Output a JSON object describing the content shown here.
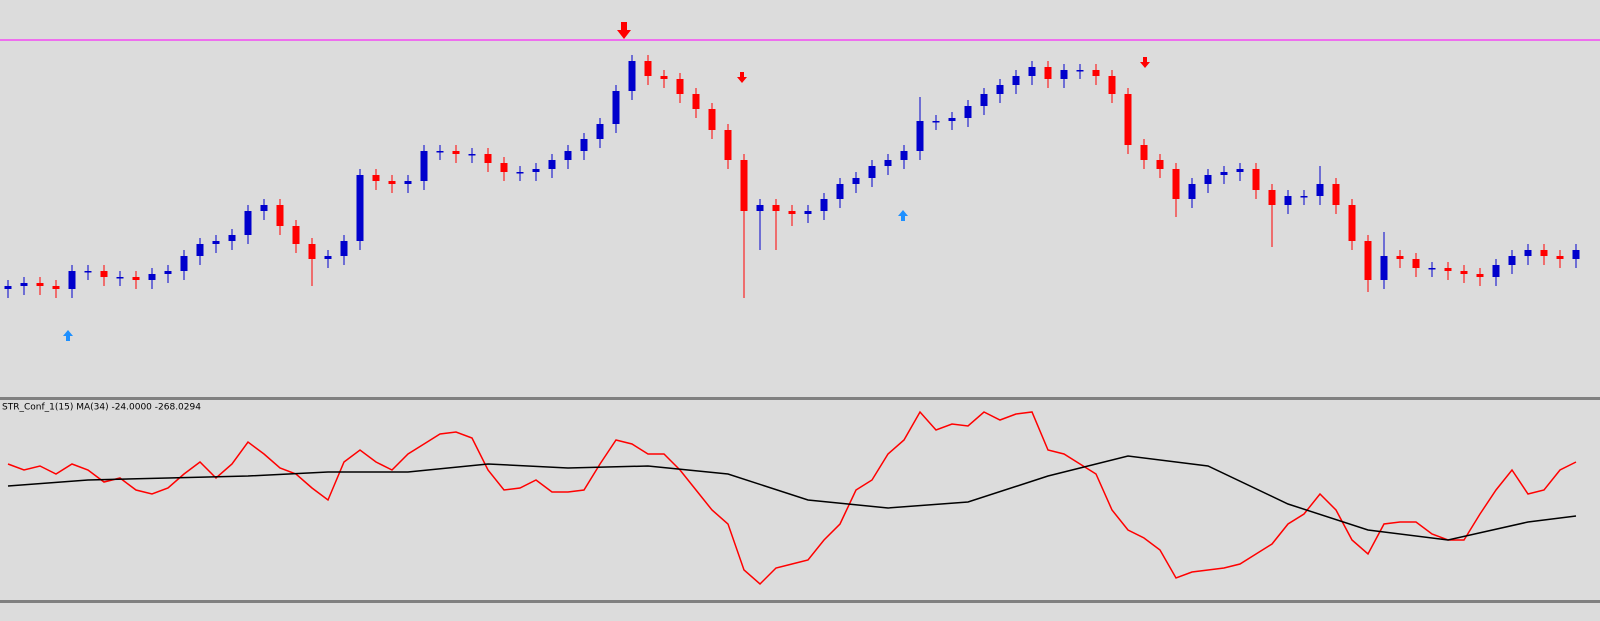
{
  "chart_data": [
    {
      "type": "candlestick",
      "open": [
        37,
        38,
        39,
        38,
        37,
        43,
        43,
        41,
        41,
        40,
        42,
        43,
        48,
        52,
        53,
        55,
        63,
        65,
        58,
        52,
        47,
        48,
        53,
        75,
        73,
        72,
        73,
        83,
        83,
        82,
        82,
        79,
        76,
        76,
        77,
        80,
        83,
        87,
        92,
        103,
        113,
        108,
        107,
        102,
        97,
        90,
        80,
        63,
        65,
        63,
        62,
        63,
        67,
        72,
        74,
        78,
        80,
        83,
        93,
        93,
        94,
        98,
        102,
        105,
        108,
        111,
        107,
        110,
        110,
        108,
        102,
        85,
        80,
        77,
        67,
        72,
        75,
        76,
        77,
        70,
        65,
        68,
        68,
        72,
        65,
        53,
        40,
        48,
        47,
        44,
        44,
        43,
        42,
        41,
        45,
        48,
        50,
        48,
        47
      ],
      "high": [
        40,
        41,
        41,
        40,
        45,
        45,
        45,
        43,
        43,
        44,
        45,
        50,
        54,
        55,
        57,
        65,
        67,
        67,
        60,
        54,
        50,
        55,
        77,
        77,
        75,
        75,
        85,
        85,
        85,
        84,
        84,
        81,
        78,
        79,
        82,
        85,
        89,
        94,
        105,
        115,
        115,
        110,
        109,
        104,
        99,
        92,
        82,
        67,
        67,
        65,
        65,
        69,
        74,
        76,
        80,
        82,
        85,
        101,
        95,
        96,
        100,
        104,
        107,
        110,
        113,
        113,
        112,
        112,
        112,
        110,
        104,
        87,
        82,
        79,
        74,
        77,
        78,
        79,
        79,
        72,
        70,
        70,
        78,
        74,
        67,
        55,
        56,
        50,
        49,
        46,
        46,
        45,
        44,
        47,
        50,
        52,
        52,
        50,
        52
      ],
      "low": [
        34,
        35,
        35,
        34,
        34,
        40,
        38,
        38,
        37,
        37,
        39,
        40,
        45,
        49,
        50,
        52,
        60,
        55,
        49,
        38,
        44,
        45,
        50,
        70,
        69,
        69,
        70,
        80,
        79,
        79,
        76,
        73,
        73,
        73,
        74,
        77,
        80,
        84,
        89,
        100,
        105,
        104,
        99,
        94,
        87,
        77,
        34,
        50,
        50,
        58,
        59,
        60,
        64,
        69,
        71,
        75,
        77,
        80,
        90,
        90,
        91,
        95,
        99,
        102,
        105,
        104,
        104,
        107,
        105,
        99,
        82,
        77,
        74,
        61,
        64,
        69,
        72,
        73,
        67,
        51,
        62,
        65,
        65,
        62,
        50,
        36,
        37,
        44,
        41,
        41,
        40,
        39,
        38,
        38,
        42,
        45,
        45,
        44,
        44
      ],
      "close": [
        38,
        39,
        38,
        37,
        43,
        43,
        41,
        41,
        40,
        42,
        43,
        48,
        52,
        53,
        55,
        63,
        65,
        58,
        52,
        47,
        48,
        53,
        75,
        73,
        72,
        73,
        83,
        83,
        82,
        82,
        79,
        76,
        76,
        77,
        80,
        83,
        87,
        92,
        103,
        113,
        108,
        107,
        102,
        97,
        90,
        80,
        63,
        65,
        63,
        62,
        63,
        67,
        72,
        74,
        78,
        80,
        83,
        93,
        93,
        94,
        98,
        102,
        105,
        108,
        111,
        107,
        110,
        110,
        108,
        102,
        85,
        80,
        77,
        67,
        72,
        75,
        76,
        77,
        70,
        65,
        68,
        68,
        72,
        65,
        53,
        40,
        48,
        47,
        44,
        44,
        43,
        42,
        41,
        45,
        48,
        50,
        48,
        47,
        50
      ],
      "up_color": "#0000cc",
      "down_color": "#ff0000",
      "ylim": [
        0,
        133
      ],
      "level": 120,
      "level_color": "#ff00ff"
    },
    {
      "type": "line",
      "title": "STR_Conf_1(15) MA(34) -24.0000 -268.0294",
      "series": [
        {
          "color": "#ff0000",
          "values": [
            68,
            65,
            67,
            63,
            68,
            65,
            59,
            61,
            55,
            53,
            56,
            63,
            69,
            61,
            68,
            79,
            73,
            66,
            63,
            56,
            50,
            69,
            75,
            69,
            65,
            73,
            78,
            83,
            84,
            81,
            65,
            55,
            56,
            60,
            54,
            54,
            55,
            68,
            80,
            78,
            73,
            73,
            65,
            55,
            45,
            38,
            15,
            8,
            16,
            18,
            20,
            30,
            38,
            55,
            60,
            73,
            80,
            94,
            85,
            88,
            87,
            94,
            90,
            93,
            94,
            75,
            73,
            68,
            63,
            45,
            35,
            31,
            25,
            11,
            14,
            15,
            16,
            18,
            23,
            28,
            38,
            43,
            53,
            45,
            30,
            23,
            38,
            39,
            39,
            33,
            30,
            30,
            43,
            55,
            65,
            53,
            55,
            65,
            69
          ]
        },
        {
          "color": "#000000",
          "x": [
            0,
            5,
            10,
            15,
            20,
            25,
            30,
            35,
            40,
            45,
            50,
            55,
            60,
            65,
            70,
            75,
            80,
            85,
            90,
            95,
            98
          ],
          "values": [
            57,
            60,
            61,
            62,
            64,
            64,
            68,
            66,
            67,
            63,
            50,
            46,
            49,
            62,
            72,
            67,
            48,
            35,
            30,
            39,
            42
          ]
        }
      ],
      "ylim": [
        0,
        100
      ]
    }
  ]
}
